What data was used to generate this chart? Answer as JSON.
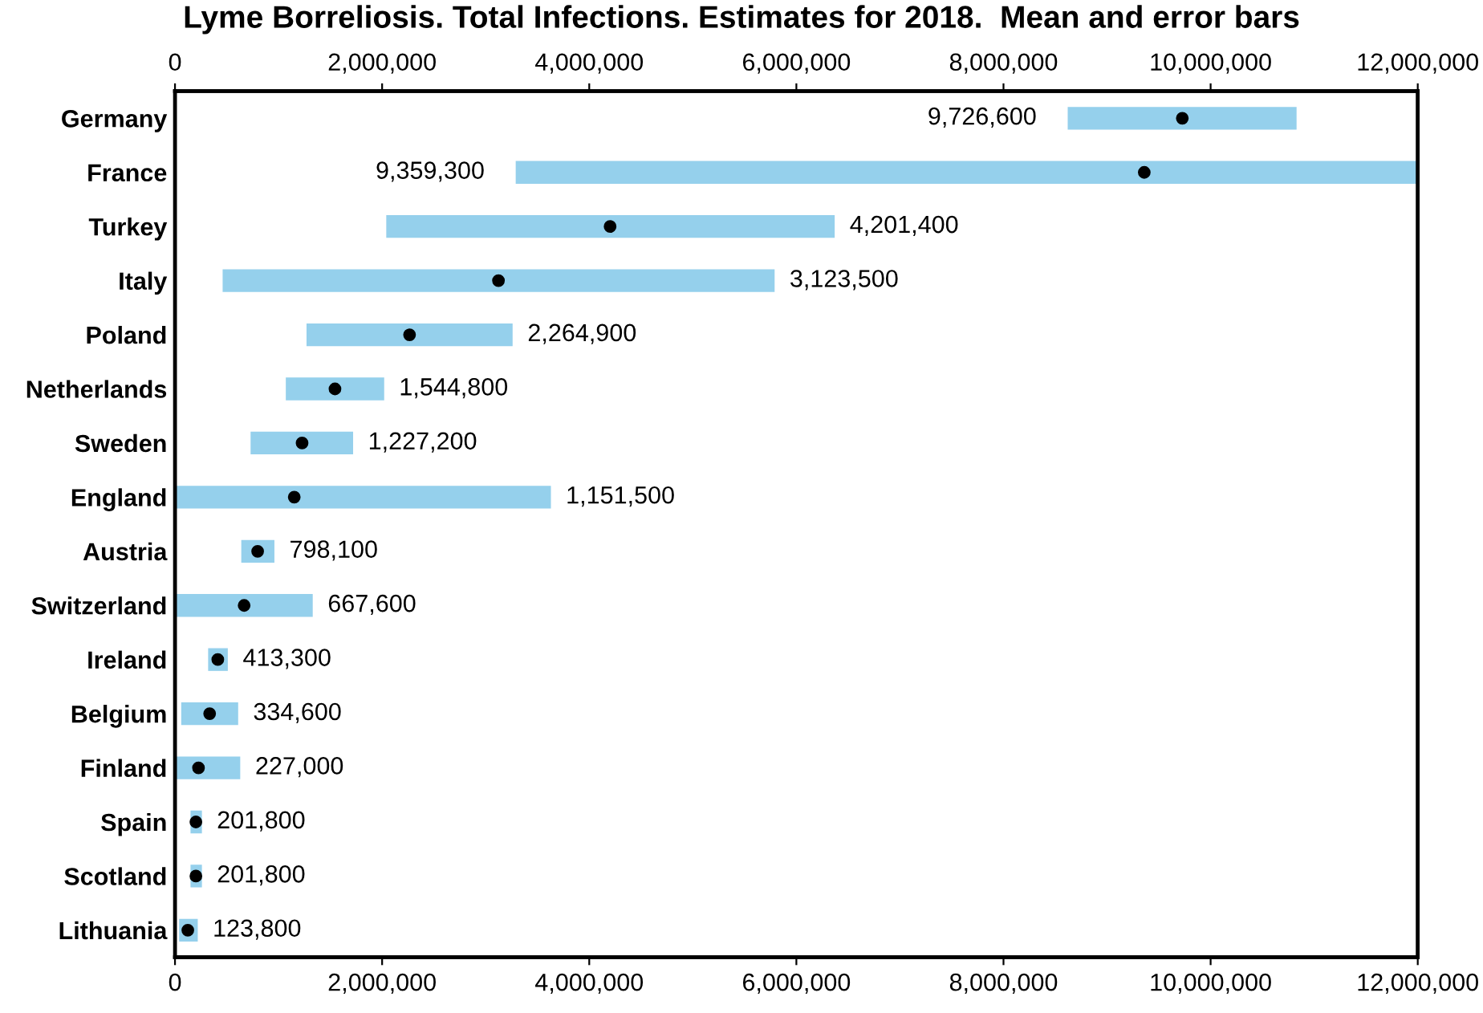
{
  "chart_data": {
    "type": "bar",
    "orientation": "horizontal",
    "title": "Lyme Borreliosis. Total Infections. Estimates for 2018.  Mean and error bars",
    "categories": [
      "Germany",
      "France",
      "Turkey",
      "Italy",
      "Poland",
      "Netherlands",
      "Sweden",
      "England",
      "Austria",
      "Switzerland",
      "Ireland",
      "Belgium",
      "Finland",
      "Spain",
      "Scotland",
      "Lithuania"
    ],
    "series": [
      {
        "color": "#95d0ec",
        "base": [
          8620000,
          3290000,
          2040000,
          460000,
          1270000,
          1070000,
          730000,
          0,
          640000,
          0,
          320000,
          60000,
          0,
          150000,
          150000,
          40000
        ],
        "values": [
          2210000,
          8710000,
          4330000,
          5330000,
          1990000,
          950000,
          990000,
          3630000,
          320000,
          1330000,
          190000,
          550000,
          630000,
          110000,
          110000,
          180000
        ]
      },
      {
        "type": "scatter",
        "color": "#000000",
        "marker": "circle",
        "values": [
          9726600,
          9359300,
          4201400,
          3123500,
          2264900,
          1544800,
          1227200,
          1151500,
          798100,
          667600,
          413300,
          334600,
          227000,
          201800,
          201800,
          123800
        ]
      }
    ],
    "annotations": [
      {
        "text": "9,726,600",
        "x": 8620000,
        "y": "Germany"
      },
      {
        "text": "9,359,300",
        "x": 3290000,
        "y": "France"
      },
      {
        "text": "4,201,400",
        "x": 6370000,
        "y": "Turkey"
      },
      {
        "text": "3,123,500",
        "x": 5790000,
        "y": "Italy"
      },
      {
        "text": "2,264,900",
        "x": 3260000,
        "y": "Poland"
      },
      {
        "text": "1,544,800",
        "x": 2020000,
        "y": "Netherlands"
      },
      {
        "text": "1,227,200",
        "x": 1720000,
        "y": "Sweden"
      },
      {
        "text": "1,151,500",
        "x": 3630000,
        "y": "England"
      },
      {
        "text": "798,100",
        "x": 960000,
        "y": "Austria"
      },
      {
        "text": "667,600",
        "x": 1330000,
        "y": "Switzerland"
      },
      {
        "text": "413,300",
        "x": 510000,
        "y": "Ireland"
      },
      {
        "text": "334,600",
        "x": 610000,
        "y": "Belgium"
      },
      {
        "text": "227,000",
        "x": 630000,
        "y": "Finland"
      },
      {
        "text": "201,800",
        "x": 260000,
        "y": "Spain"
      },
      {
        "text": "201,800",
        "x": 260000,
        "y": "Scotland"
      },
      {
        "text": "123,800",
        "x": 220000,
        "y": "Lithuania"
      }
    ],
    "xlim": [
      0,
      12000000
    ],
    "xticks": [
      {
        "value": 0,
        "label": "0"
      },
      {
        "value": 2000000,
        "label": "2,000,000"
      },
      {
        "value": 4000000,
        "label": "4,000,000"
      },
      {
        "value": 6000000,
        "label": "6,000,000"
      },
      {
        "value": 8000000,
        "label": "8,000,000"
      },
      {
        "value": 10000000,
        "label": "10,000,000"
      },
      {
        "value": 12000000,
        "label": "12,000,000"
      }
    ],
    "x2lim": [
      0,
      12000000
    ],
    "x2ticks": [
      {
        "value": 0,
        "label": "0"
      },
      {
        "value": 2000000,
        "label": "2,000,000"
      },
      {
        "value": 4000000,
        "label": "4,000,000"
      },
      {
        "value": 6000000,
        "label": "6,000,000"
      },
      {
        "value": 8000000,
        "label": "8,000,000"
      },
      {
        "value": 10000000,
        "label": "10,000,000"
      },
      {
        "value": 12000000,
        "label": "12,000,000"
      }
    ],
    "grid": false
  }
}
